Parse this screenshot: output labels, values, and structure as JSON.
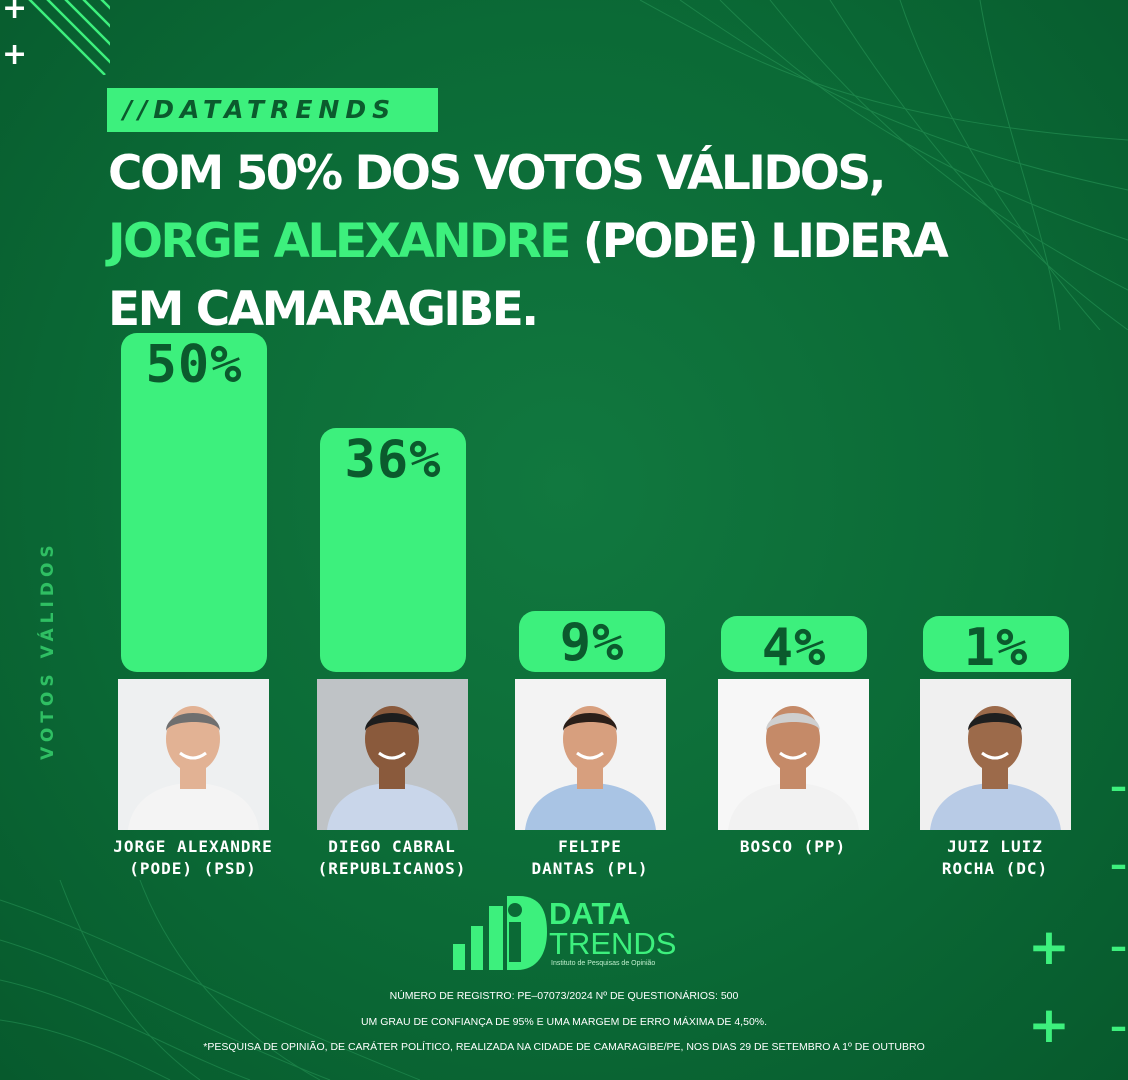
{
  "brand_tag": "//DATATRENDS",
  "headline": {
    "line1": "COM 50% DOS VOTOS VÁLIDOS,",
    "line2_highlight": "JORGE ALEXANDRE",
    "line2_rest": " (PODE) LIDERA",
    "line3": "EM CAMARAGIBE."
  },
  "colors": {
    "background": "#0b6a36",
    "accent": "#3df07d",
    "bar_text": "#0b5a2d"
  },
  "chart_data": {
    "type": "bar",
    "ylabel": "VOTOS VÁLIDOS",
    "ylim": [
      0,
      50
    ],
    "categories": [
      "JORGE ALEXANDRE (PODE) (PSD)",
      "DIEGO CABRAL (REPUBLICANOS)",
      "FELIPE DANTAS (PL)",
      "BOSCO (PP)",
      "JUIZ LUIZ ROCHA (DC)"
    ],
    "values": [
      50,
      36,
      9,
      4,
      1
    ],
    "data_labels": [
      "50%",
      "36%",
      "9%",
      "4%",
      "1%"
    ]
  },
  "candidates": [
    {
      "name_line1": "JORGE ALEXANDRE",
      "name_line2": "(PODE) (PSD)"
    },
    {
      "name_line1": "DIEGO CABRAL",
      "name_line2": "(REPUBLICANOS)"
    },
    {
      "name_line1": "FELIPE",
      "name_line2": "DANTAS (PL)"
    },
    {
      "name_line1": "BOSCO (PP)",
      "name_line2": ""
    },
    {
      "name_line1": "JUIZ LUIZ",
      "name_line2": "ROCHA (DC)"
    }
  ],
  "logo": {
    "word1": "DATA",
    "word2": "TRENDS",
    "subtitle": "Instituto de Pesquisas de Opinião"
  },
  "footer": {
    "line1": "NÚMERO DE REGISTRO: PE–07073/2024 Nº DE QUESTIONÁRIOS: 500",
    "line2": "UM GRAU DE CONFIANÇA DE 95% E UMA MARGEM DE ERRO MÁXIMA DE 4,50%.",
    "line3": "*PESQUISA DE OPINIÃO, DE CARÁTER POLÍTICO, REALIZADA NA CIDADE DE CAMARAGIBE/PE, NOS DIAS 29 DE SETEMBRO A 1º DE OUTUBRO"
  }
}
